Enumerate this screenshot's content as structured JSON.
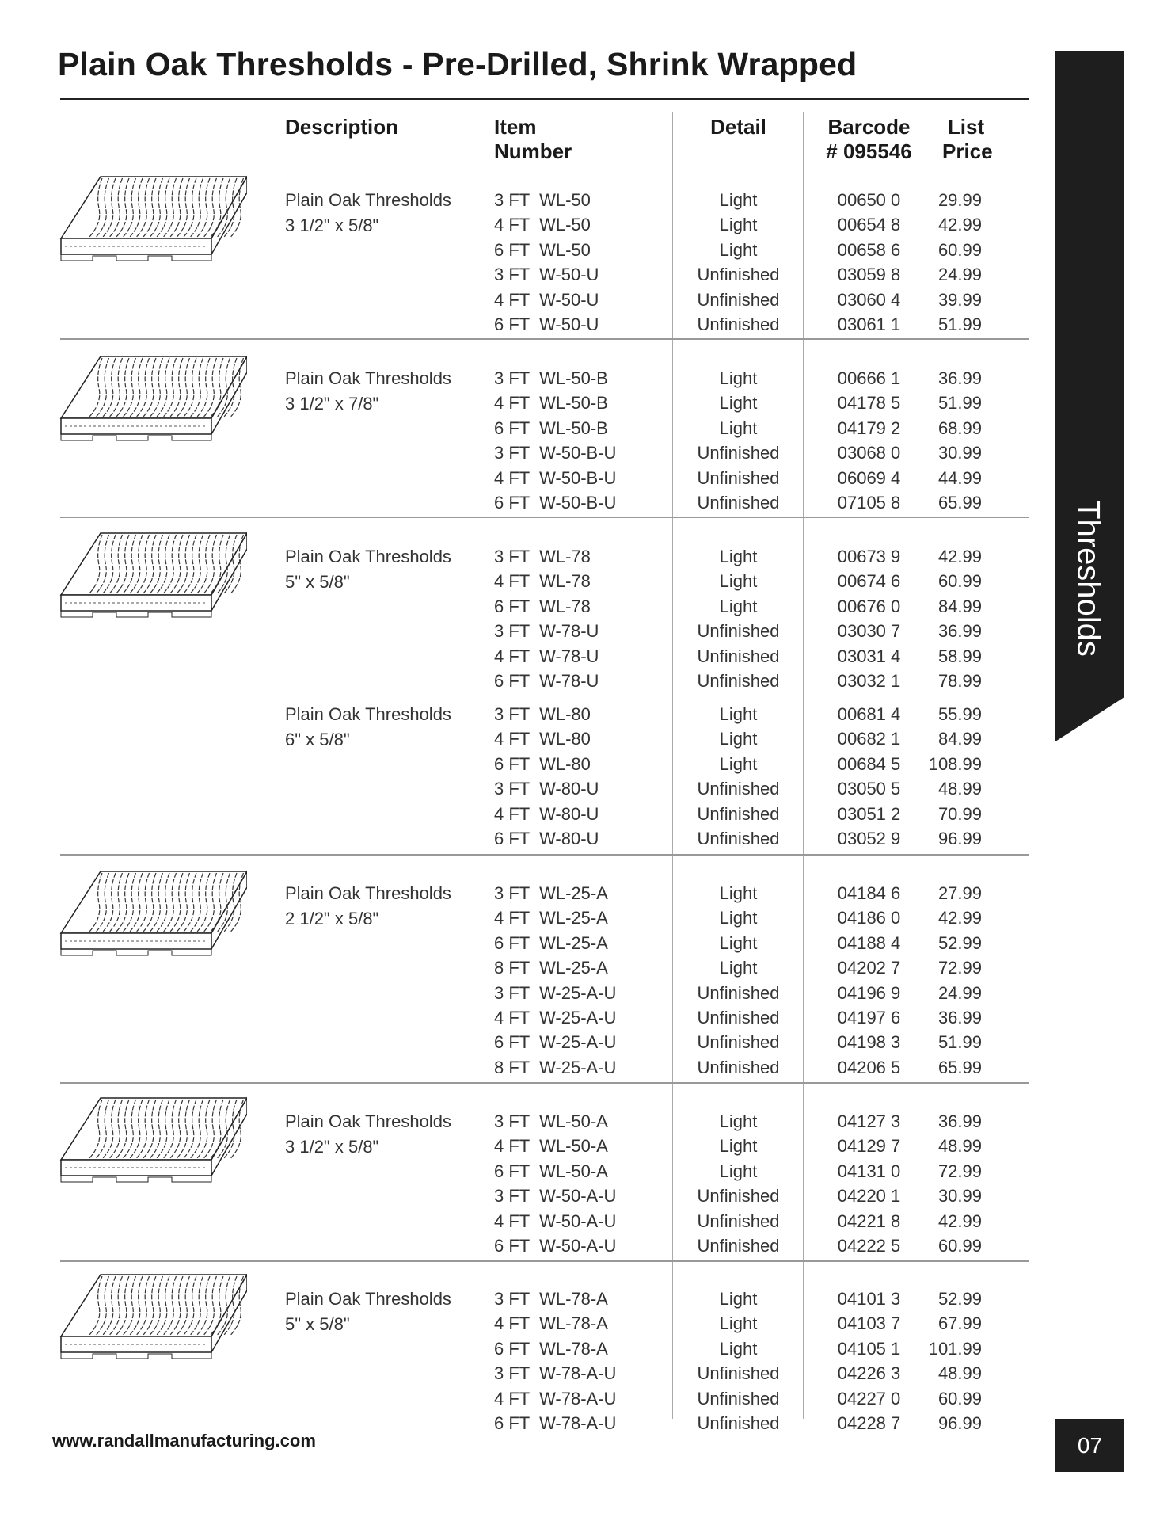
{
  "title": "Plain Oak Thresholds - Pre-Drilled, Shrink Wrapped",
  "side_tab": "Thresholds",
  "page_number": "07",
  "footer_url": "www.randallmanufacturing.com",
  "colors": {
    "tab_bg": "#1e1e1e",
    "text": "#333333"
  },
  "headers": {
    "description": "Description",
    "item_number": [
      "Item",
      "Number"
    ],
    "detail": "Detail",
    "barcode": [
      "Barcode",
      "# 095546"
    ],
    "price": [
      "List",
      "Price"
    ]
  },
  "groups": [
    {
      "name": "Plain Oak Thresholds",
      "size": "3 1/2\" x 5/8\"",
      "image": "oak-threshold-illustration",
      "rows": [
        [
          "3 FT",
          "WL-50",
          "Light",
          "00650 0",
          "29.99"
        ],
        [
          "4 FT",
          "WL-50",
          "Light",
          "00654 8",
          "42.99"
        ],
        [
          "6 FT",
          "WL-50",
          "Light",
          "00658 6",
          "60.99"
        ],
        [
          "3 FT",
          "W-50-U",
          "Unfinished",
          "03059 8",
          "24.99"
        ],
        [
          "4 FT",
          "W-50-U",
          "Unfinished",
          "03060 4",
          "39.99"
        ],
        [
          "6 FT",
          "W-50-U",
          "Unfinished",
          "03061 1",
          "51.99"
        ]
      ]
    },
    {
      "name": "Plain Oak Thresholds",
      "size": "3 1/2\" x 7/8\"",
      "image": "oak-threshold-illustration",
      "rows": [
        [
          "3 FT",
          "WL-50-B",
          "Light",
          "00666 1",
          "36.99"
        ],
        [
          "4 FT",
          "WL-50-B",
          "Light",
          "04178 5",
          "51.99"
        ],
        [
          "6 FT",
          "WL-50-B",
          "Light",
          "04179 2",
          "68.99"
        ],
        [
          "3 FT",
          "W-50-B-U",
          "Unfinished",
          "03068 0",
          "30.99"
        ],
        [
          "4 FT",
          "W-50-B-U",
          "Unfinished",
          "06069 4",
          "44.99"
        ],
        [
          "6 FT",
          "W-50-B-U",
          "Unfinished",
          "07105 8",
          "65.99"
        ]
      ]
    },
    {
      "name": "Plain Oak Thresholds",
      "size": "5\" x 5/8\"",
      "image": "oak-threshold-illustration",
      "rows": [
        [
          "3 FT",
          "WL-78",
          "Light",
          "00673 9",
          "42.99"
        ],
        [
          "4 FT",
          "WL-78",
          "Light",
          "00674 6",
          "60.99"
        ],
        [
          "6 FT",
          "WL-78",
          "Light",
          "00676 0",
          "84.99"
        ],
        [
          "3 FT",
          "W-78-U",
          "Unfinished",
          "03030 7",
          "36.99"
        ],
        [
          "4 FT",
          "W-78-U",
          "Unfinished",
          "03031 4",
          "58.99"
        ],
        [
          "6 FT",
          "W-78-U",
          "Unfinished",
          "03032 1",
          "78.99"
        ]
      ]
    },
    {
      "name": "Plain Oak Thresholds",
      "size": "6\" x 5/8\"",
      "rows": [
        [
          "3 FT",
          "WL-80",
          "Light",
          "00681 4",
          "55.99"
        ],
        [
          "4 FT",
          "WL-80",
          "Light",
          "00682 1",
          "84.99"
        ],
        [
          "6 FT",
          "WL-80",
          "Light",
          "00684 5",
          "108.99"
        ],
        [
          "3 FT",
          "W-80-U",
          "Unfinished",
          "03050 5",
          "48.99"
        ],
        [
          "4 FT",
          "W-80-U",
          "Unfinished",
          "03051 2",
          "70.99"
        ],
        [
          "6 FT",
          "W-80-U",
          "Unfinished",
          "03052 9",
          "96.99"
        ]
      ]
    },
    {
      "name": "Plain Oak Thresholds",
      "size": "2 1/2\" x 5/8\"",
      "image": "oak-threshold-illustration",
      "rows": [
        [
          "3 FT",
          "WL-25-A",
          "Light",
          "04184 6",
          "27.99"
        ],
        [
          "4 FT",
          "WL-25-A",
          "Light",
          "04186 0",
          "42.99"
        ],
        [
          "6 FT",
          "WL-25-A",
          "Light",
          "04188 4",
          "52.99"
        ],
        [
          "8 FT",
          "WL-25-A",
          "Light",
          "04202 7",
          "72.99"
        ],
        [
          "3 FT",
          "W-25-A-U",
          "Unfinished",
          "04196 9",
          "24.99"
        ],
        [
          "4 FT",
          "W-25-A-U",
          "Unfinished",
          "04197 6",
          "36.99"
        ],
        [
          "6 FT",
          "W-25-A-U",
          "Unfinished",
          "04198 3",
          "51.99"
        ],
        [
          "8 FT",
          "W-25-A-U",
          "Unfinished",
          "04206 5",
          "65.99"
        ]
      ]
    },
    {
      "name": "Plain Oak Thresholds",
      "size": "3 1/2\" x 5/8\"",
      "image": "oak-threshold-illustration",
      "rows": [
        [
          "3 FT",
          "WL-50-A",
          "Light",
          "04127 3",
          "36.99"
        ],
        [
          "4 FT",
          "WL-50-A",
          "Light",
          "04129 7",
          "48.99"
        ],
        [
          "6 FT",
          "WL-50-A",
          "Light",
          "04131 0",
          "72.99"
        ],
        [
          "3 FT",
          "W-50-A-U",
          "Unfinished",
          "04220 1",
          "30.99"
        ],
        [
          "4 FT",
          "W-50-A-U",
          "Unfinished",
          "04221 8",
          "42.99"
        ],
        [
          "6 FT",
          "W-50-A-U",
          "Unfinished",
          "04222 5",
          "60.99"
        ]
      ]
    },
    {
      "name": "Plain Oak Thresholds",
      "size": "5\" x 5/8\"",
      "image": "oak-threshold-illustration",
      "rows": [
        [
          "3 FT",
          "WL-78-A",
          "Light",
          "04101 3",
          "52.99"
        ],
        [
          "4 FT",
          "WL-78-A",
          "Light",
          "04103 7",
          "67.99"
        ],
        [
          "6 FT",
          "WL-78-A",
          "Light",
          "04105 1",
          "101.99"
        ],
        [
          "3 FT",
          "W-78-A-U",
          "Unfinished",
          "04226 3",
          "48.99"
        ],
        [
          "4 FT",
          "W-78-A-U",
          "Unfinished",
          "04227 0",
          "60.99"
        ],
        [
          "6 FT",
          "W-78-A-U",
          "Unfinished",
          "04228 7",
          "96.99"
        ]
      ]
    }
  ]
}
